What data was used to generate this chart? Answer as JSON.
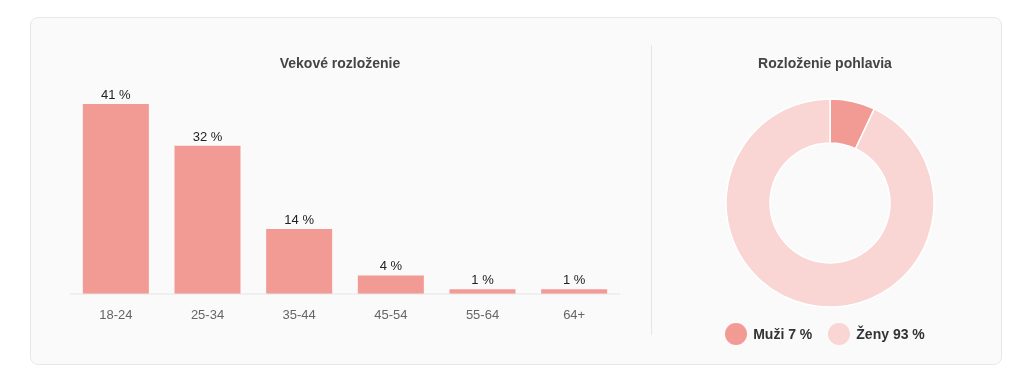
{
  "chart_data": [
    {
      "type": "bar",
      "title": "Vekové rozloženie",
      "categories": [
        "18-24",
        "25-34",
        "35-44",
        "45-54",
        "55-64",
        "64+"
      ],
      "values": [
        41,
        32,
        14,
        4,
        1,
        1
      ],
      "value_labels": [
        "41 %",
        "32 %",
        "14 %",
        "4 %",
        "1 %",
        "1 %"
      ],
      "color": "#f29b94",
      "grid": false
    },
    {
      "type": "donut",
      "title": "Rozloženie pohlavia",
      "categories": [
        "Muži",
        "Ženy"
      ],
      "values": [
        7,
        93
      ],
      "value_labels": [
        "7 %",
        "93 %"
      ],
      "colors": [
        "#f29b94",
        "#f9d5d3"
      ],
      "legend": "bottom"
    }
  ]
}
